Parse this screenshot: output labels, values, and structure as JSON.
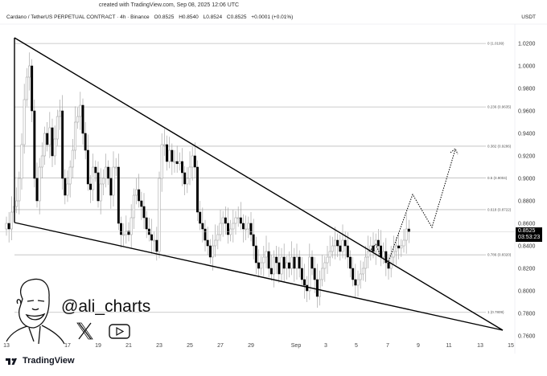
{
  "header": {
    "created": "created with TradingView.com, Sep 08, 2025 12:06 UTC",
    "symbol": "Cardano / TetherUS PERPETUAL CONTRACT · 4h · Binance",
    "open": "O0.8525",
    "high": "H0.8540",
    "low": "L0.8524",
    "close": "C0.8525",
    "change": "+0.0001 (+0.01%)",
    "currency": "USDT"
  },
  "price_tag": {
    "price": "0.8525",
    "countdown": "03:53:23"
  },
  "watermark": {
    "handle": "@ali_charts",
    "icons": [
      "x-logo-icon",
      "youtube-icon"
    ]
  },
  "footer": {
    "brand": "TradingView"
  },
  "colors": {
    "bull": "#ffffff",
    "bear": "#000000",
    "trendline": "#000000",
    "fib": "#bdbdbd"
  },
  "chart_data": {
    "type": "candlestick",
    "interval": "4h",
    "start": "Aug 13",
    "x_ticks": [
      "13",
      "17",
      "19",
      "21",
      "23",
      "25",
      "27",
      "29",
      "Sep",
      "3",
      "5",
      "7",
      "9",
      "11",
      "13",
      "15"
    ],
    "y_ticks": [
      "1.0200",
      "1.0000",
      "0.9800",
      "0.9600",
      "0.9400",
      "0.9200",
      "0.9000",
      "0.8800",
      "0.8600",
      "0.8400",
      "0.8200",
      "0.8000",
      "0.7800",
      "0.7600"
    ],
    "ylim": [
      0.76,
      1.02
    ],
    "closes": [
      0.86,
      0.855,
      0.87,
      0.875,
      0.88,
      0.9,
      0.93,
      0.97,
      0.99,
      1.0,
      0.96,
      0.9,
      0.88,
      0.91,
      0.92,
      0.94,
      0.93,
      0.945,
      0.92,
      0.935,
      0.955,
      0.96,
      0.9,
      0.885,
      0.895,
      0.91,
      0.925,
      0.95,
      0.955,
      0.965,
      0.94,
      0.925,
      0.895,
      0.89,
      0.91,
      0.905,
      0.88,
      0.895,
      0.9,
      0.91,
      0.9,
      0.885,
      0.91,
      0.91,
      0.86,
      0.85,
      0.85,
      0.853,
      0.85,
      0.865,
      0.885,
      0.89,
      0.88,
      0.875,
      0.865,
      0.855,
      0.85,
      0.845,
      0.845,
      0.835,
      0.9,
      0.93,
      0.93,
      0.915,
      0.925,
      0.915,
      0.915,
      0.913,
      0.915,
      0.905,
      0.895,
      0.9,
      0.91,
      0.92,
      0.91,
      0.87,
      0.86,
      0.855,
      0.845,
      0.84,
      0.83,
      0.84,
      0.845,
      0.85,
      0.86,
      0.865,
      0.86,
      0.85,
      0.855,
      0.86,
      0.865,
      0.865,
      0.86,
      0.855,
      0.855,
      0.86,
      0.85,
      0.84,
      0.825,
      0.82,
      0.825,
      0.83,
      0.835,
      0.82,
      0.815,
      0.83,
      0.825,
      0.815,
      0.83,
      0.82,
      0.825,
      0.82,
      0.83,
      0.82,
      0.83,
      0.82,
      0.81,
      0.805,
      0.8,
      0.83,
      0.82,
      0.81,
      0.795,
      0.81,
      0.82,
      0.825,
      0.83,
      0.835,
      0.84,
      0.845,
      0.84,
      0.835,
      0.845,
      0.84,
      0.83,
      0.82,
      0.81,
      0.805,
      0.81,
      0.815,
      0.82,
      0.83,
      0.835,
      0.84,
      0.835,
      0.845,
      0.84,
      0.83,
      0.835,
      0.825,
      0.82,
      0.83,
      0.835,
      0.84,
      0.838,
      0.84,
      0.845,
      0.855,
      0.8525
    ],
    "fib_levels": [
      {
        "label": "0 (1.0199)",
        "value": 1.0199
      },
      {
        "label": "0.236 (0.9635)",
        "value": 0.9635
      },
      {
        "label": "0.382 (0.9286)",
        "value": 0.9286
      },
      {
        "label": "0.5 (0.9004)",
        "value": 0.9004
      },
      {
        "label": "0.618 (0.8722)",
        "value": 0.8722
      },
      {
        "label": "0.786 (0.8320)",
        "value": 0.832
      },
      {
        "label": "1 (0.7809)",
        "value": 0.7809
      }
    ],
    "current_price": 0.8525,
    "pattern": "falling wedge",
    "projection": "dotted zig-zag toward 0.9286"
  }
}
